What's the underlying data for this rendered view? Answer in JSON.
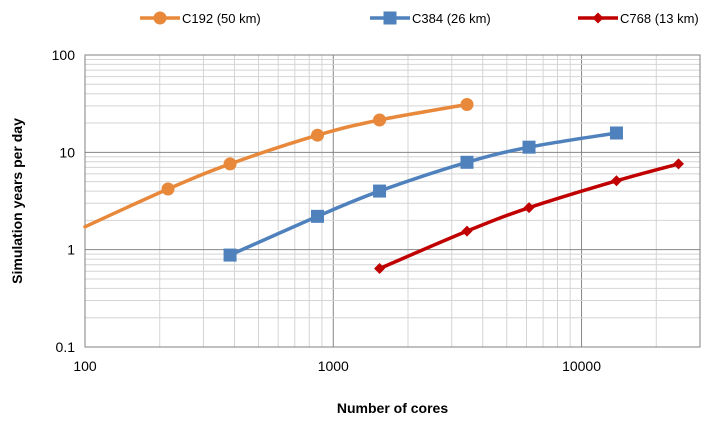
{
  "chart_data": {
    "type": "line",
    "title": "",
    "xlabel": "Number of cores",
    "ylabel": "Simulation years per day",
    "x_scale": "log",
    "y_scale": "log",
    "xlim": [
      100,
      30000
    ],
    "ylim": [
      0.1,
      100
    ],
    "x_ticks": [
      "100",
      "1000",
      "10000"
    ],
    "y_ticks": [
      "0.1",
      "1",
      "10",
      "100"
    ],
    "grid": true,
    "legend_position": "top",
    "series": [
      {
        "name": "C192 (50 km)",
        "color": "#E8883A",
        "marker": "circle",
        "line_start": [
          100,
          1.72
        ],
        "x": [
          216,
          384,
          864,
          1536,
          3456
        ],
        "y": [
          4.2,
          7.6,
          15.0,
          21.5,
          31.0
        ]
      },
      {
        "name": "C384 (26 km)",
        "color": "#4F81BD",
        "marker": "square",
        "x": [
          384,
          864,
          1536,
          3456,
          6144,
          13824
        ],
        "y": [
          0.88,
          2.2,
          4.0,
          7.9,
          11.3,
          15.8
        ]
      },
      {
        "name": "C768 (13 km)",
        "color": "#C00000",
        "marker": "diamond",
        "x": [
          1536,
          3456,
          6144,
          13824,
          24576
        ],
        "y": [
          0.64,
          1.55,
          2.7,
          5.1,
          7.6
        ]
      }
    ]
  }
}
